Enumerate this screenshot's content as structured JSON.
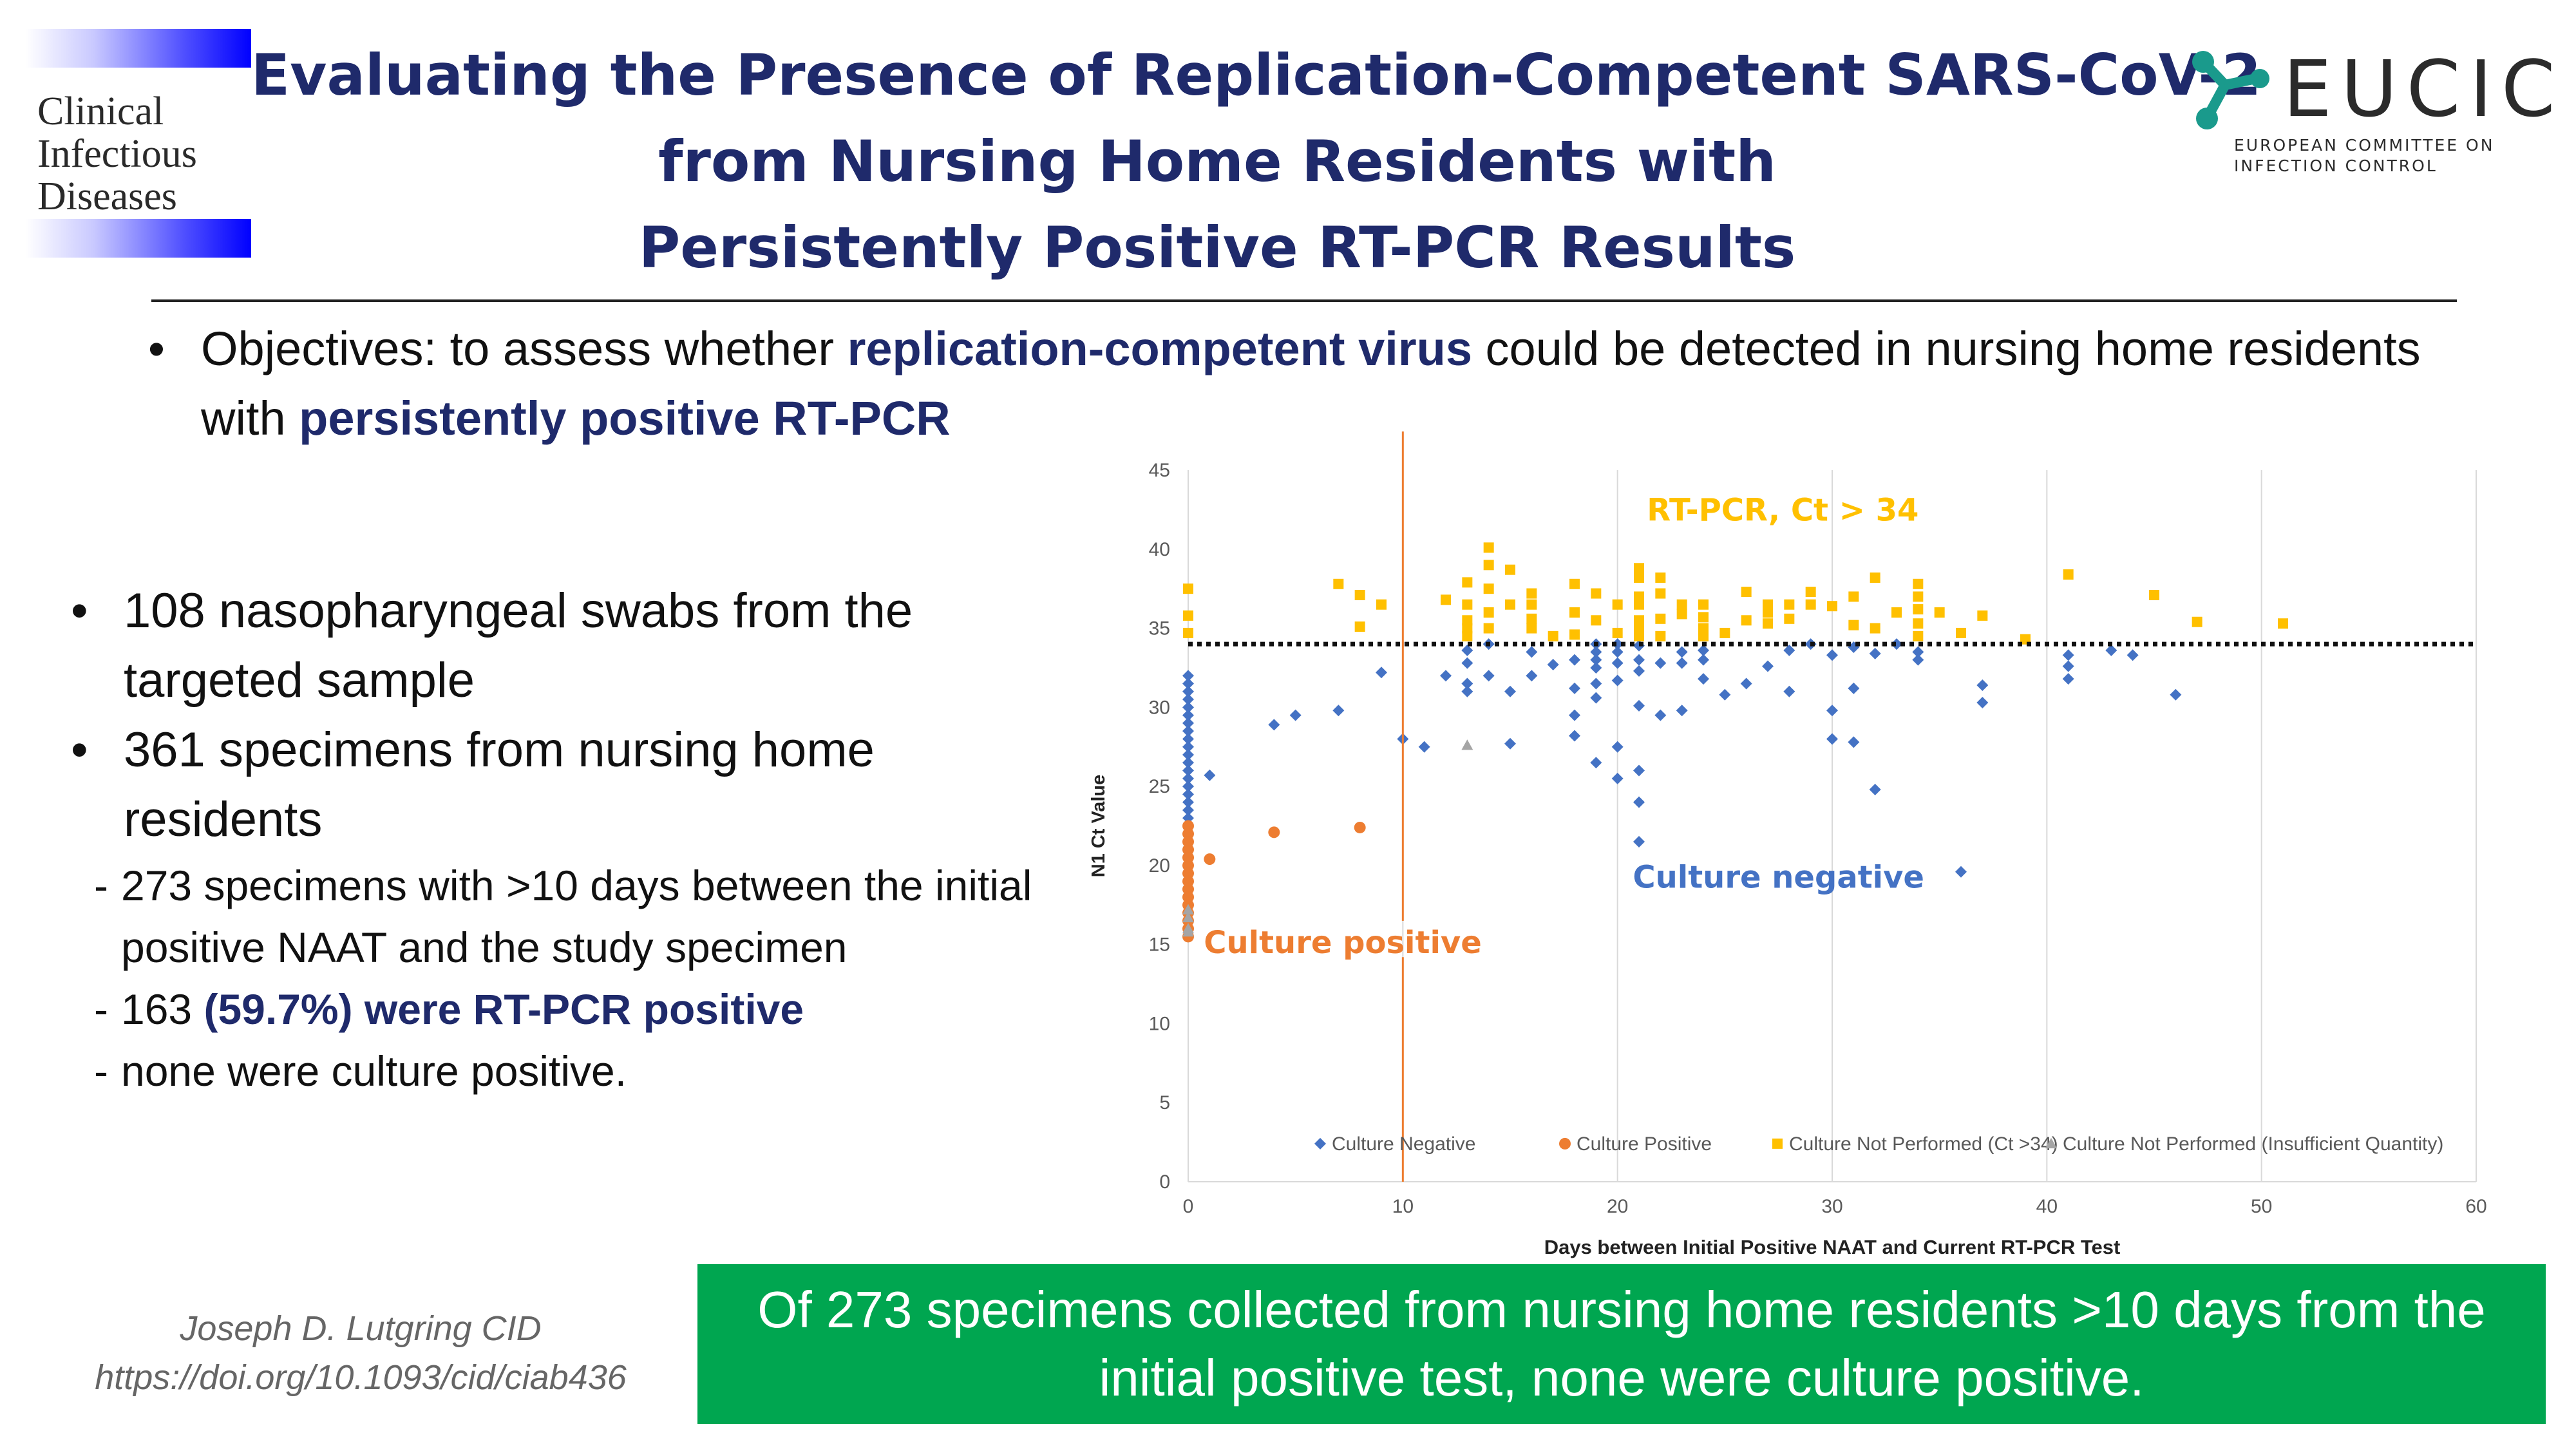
{
  "journal_logo": {
    "lines": [
      "Clinical",
      "Infectious",
      "Diseases"
    ]
  },
  "title": {
    "line1": "Evaluating the Presence of Replication-Competent SARS-CoV-2",
    "line2": "from Nursing Home Residents with",
    "line3": "Persistently Positive RT-PCR Results"
  },
  "eucic": {
    "name": "EUCIC",
    "sub1": "EUROPEAN COMMITTEE ON",
    "sub2": "INFECTION CONTROL",
    "color": "#1a9a8c"
  },
  "objectives": {
    "bullet": "•",
    "p1": "Objectives: to assess whether ",
    "h1": "replication-competent virus",
    "p2": " could be detected in nursing home residents with ",
    "h2": "persistently positive RT-PCR"
  },
  "left_list": {
    "bullet": "•",
    "dash": "-",
    "item1": "108 nasopharyngeal swabs from the targeted sample",
    "item2": "361 specimens from nursing home residents",
    "sub1": "273 specimens with >10 days between the initial positive NAAT and the study specimen",
    "sub2_num": "163 ",
    "sub2_hl": "(59.7%) were RT-PCR positive",
    "sub3": "none were culture positive."
  },
  "author": {
    "line1": "Joseph D. Lutgring CID",
    "line2": "https://doi.org/10.1093/cid/ciab436"
  },
  "takeaway": {
    "line1": "Of 273 specimens collected from nursing home residents >10 days from the",
    "line2": "initial positive test, none were culture positive."
  },
  "chart_data": {
    "type": "scatter",
    "xlabel": "Days between Initial Positive NAAT and Current RT-PCR Test",
    "ylabel": "N1 Ct Value",
    "xlim": [
      0,
      60
    ],
    "ylim": [
      0,
      45
    ],
    "xticks": [
      0,
      10,
      20,
      30,
      40,
      50,
      60
    ],
    "yticks": [
      0,
      5,
      10,
      15,
      20,
      25,
      30,
      35,
      40,
      45
    ],
    "grid": "vertical",
    "threshold": 34,
    "vline": 10,
    "annotations": {
      "ct_label": "RT-PCR, Ct > 34",
      "culture_positive": "Culture positive",
      "culture_negative": "Culture negative"
    },
    "colors": {
      "negative": "#4472c4",
      "positive": "#ed7d31",
      "not_performed_ct": "#ffc000",
      "insufficient": "#a5a5a5",
      "vline": "#ed7d31"
    },
    "legend_position": "bottom-inside",
    "series": [
      {
        "name": "Culture Negative",
        "marker": "diamond",
        "points": [
          [
            0,
            32
          ],
          [
            0,
            31.5
          ],
          [
            0,
            31
          ],
          [
            0,
            30.5
          ],
          [
            0,
            30
          ],
          [
            0,
            29.5
          ],
          [
            0,
            29
          ],
          [
            0,
            28.5
          ],
          [
            0,
            28
          ],
          [
            0,
            27.5
          ],
          [
            0,
            27
          ],
          [
            0,
            26.5
          ],
          [
            0,
            26
          ],
          [
            0,
            25.5
          ],
          [
            0,
            25
          ],
          [
            0,
            24.5
          ],
          [
            0,
            24
          ],
          [
            0,
            23.5
          ],
          [
            0,
            23
          ],
          [
            1,
            25.7
          ],
          [
            4,
            28.9
          ],
          [
            5,
            29.5
          ],
          [
            7,
            29.8
          ],
          [
            9,
            32.2
          ],
          [
            10,
            28
          ],
          [
            11,
            27.5
          ],
          [
            12,
            32
          ],
          [
            13,
            31.5
          ],
          [
            13,
            31
          ],
          [
            13,
            32.8
          ],
          [
            13,
            33.6
          ],
          [
            14,
            32
          ],
          [
            14,
            34
          ],
          [
            15,
            31
          ],
          [
            15,
            27.7
          ],
          [
            16,
            33.5
          ],
          [
            16,
            32
          ],
          [
            17,
            32.7
          ],
          [
            18,
            33
          ],
          [
            18,
            31.2
          ],
          [
            18,
            29.5
          ],
          [
            18,
            28.2
          ],
          [
            19,
            34
          ],
          [
            19,
            33.5
          ],
          [
            19,
            33
          ],
          [
            19,
            32.5
          ],
          [
            19,
            31.5
          ],
          [
            19,
            30.6
          ],
          [
            19,
            26.5
          ],
          [
            20,
            34
          ],
          [
            20,
            33.5
          ],
          [
            20,
            32.8
          ],
          [
            20,
            31.7
          ],
          [
            20,
            27.5
          ],
          [
            20,
            25.5
          ],
          [
            21,
            33.9
          ],
          [
            21,
            33
          ],
          [
            21,
            32.3
          ],
          [
            21,
            30.1
          ],
          [
            21,
            26
          ],
          [
            21,
            24
          ],
          [
            21,
            21.5
          ],
          [
            22,
            32.8
          ],
          [
            22,
            29.5
          ],
          [
            23,
            29.8
          ],
          [
            23,
            33.5
          ],
          [
            23,
            32.8
          ],
          [
            24,
            33.6
          ],
          [
            24,
            33
          ],
          [
            24,
            31.8
          ],
          [
            25,
            30.8
          ],
          [
            26,
            31.5
          ],
          [
            27,
            32.6
          ],
          [
            28,
            33.6
          ],
          [
            28,
            31
          ],
          [
            29,
            34
          ],
          [
            30,
            33.3
          ],
          [
            30,
            29.8
          ],
          [
            30,
            28
          ],
          [
            31,
            33.8
          ],
          [
            31,
            31.2
          ],
          [
            31,
            27.8
          ],
          [
            32,
            33.4
          ],
          [
            32,
            24.8
          ],
          [
            33,
            34
          ],
          [
            34,
            33.5
          ],
          [
            34,
            33
          ],
          [
            36,
            19.6
          ],
          [
            37,
            31.4
          ],
          [
            37,
            30.3
          ],
          [
            41,
            33.3
          ],
          [
            41,
            32.6
          ],
          [
            41,
            31.8
          ],
          [
            43,
            33.6
          ],
          [
            44,
            33.3
          ],
          [
            46,
            30.8
          ]
        ]
      },
      {
        "name": "Culture Positive",
        "marker": "circle",
        "points": [
          [
            0,
            22.5
          ],
          [
            0,
            22
          ],
          [
            0,
            21.5
          ],
          [
            0,
            21
          ],
          [
            0,
            20.5
          ],
          [
            0,
            20
          ],
          [
            0,
            19.5
          ],
          [
            0,
            19
          ],
          [
            0,
            18.5
          ],
          [
            0,
            18
          ],
          [
            0,
            17.5
          ],
          [
            0,
            17
          ],
          [
            0,
            16.5
          ],
          [
            0,
            16
          ],
          [
            0,
            15.5
          ],
          [
            1,
            20.4
          ],
          [
            4,
            22.1
          ],
          [
            8,
            22.4
          ]
        ]
      },
      {
        "name": "Culture Not Performed (Ct >34)",
        "marker": "square",
        "points": [
          [
            0,
            37.5
          ],
          [
            0,
            35.8
          ],
          [
            0,
            34.7
          ],
          [
            7,
            37.8
          ],
          [
            8,
            37.1
          ],
          [
            8,
            35.1
          ],
          [
            9,
            36.5
          ],
          [
            12,
            36.8
          ],
          [
            13,
            37.9
          ],
          [
            13,
            36.5
          ],
          [
            13,
            35.5
          ],
          [
            13,
            35
          ],
          [
            13,
            34.5
          ],
          [
            14,
            40.1
          ],
          [
            14,
            39
          ],
          [
            14,
            37.5
          ],
          [
            14,
            36
          ],
          [
            14,
            35
          ],
          [
            15,
            38.7
          ],
          [
            15,
            36.5
          ],
          [
            16,
            37.2
          ],
          [
            16,
            36.5
          ],
          [
            16,
            35.6
          ],
          [
            16,
            35
          ],
          [
            17,
            34.5
          ],
          [
            18,
            37.8
          ],
          [
            18,
            36
          ],
          [
            18,
            34.6
          ],
          [
            19,
            37.2
          ],
          [
            19,
            35.5
          ],
          [
            20,
            36.5
          ],
          [
            20,
            34.7
          ],
          [
            21,
            38.8
          ],
          [
            21,
            38.2
          ],
          [
            21,
            37
          ],
          [
            21,
            36.5
          ],
          [
            21,
            35.5
          ],
          [
            21,
            35
          ],
          [
            21,
            34.5
          ],
          [
            22,
            38.2
          ],
          [
            22,
            37.2
          ],
          [
            22,
            35.6
          ],
          [
            22,
            34.5
          ],
          [
            23,
            36.5
          ],
          [
            23,
            35.9
          ],
          [
            24,
            36.5
          ],
          [
            24,
            35.7
          ],
          [
            24,
            35
          ],
          [
            24,
            34.5
          ],
          [
            25,
            34.7
          ],
          [
            26,
            37.3
          ],
          [
            26,
            35.5
          ],
          [
            27,
            36.5
          ],
          [
            27,
            36
          ],
          [
            27,
            35.3
          ],
          [
            28,
            36.5
          ],
          [
            28,
            35.6
          ],
          [
            29,
            37.3
          ],
          [
            29,
            36.5
          ],
          [
            30,
            36.4
          ],
          [
            31,
            37
          ],
          [
            31,
            35.2
          ],
          [
            32,
            38.2
          ],
          [
            32,
            35
          ],
          [
            33,
            36
          ],
          [
            34,
            37.8
          ],
          [
            34,
            37
          ],
          [
            34,
            36.2
          ],
          [
            34,
            35.3
          ],
          [
            34,
            34.5
          ],
          [
            35,
            36
          ],
          [
            36,
            34.7
          ],
          [
            37,
            35.8
          ],
          [
            39,
            34.3
          ],
          [
            41,
            38.4
          ],
          [
            45,
            37.1
          ],
          [
            47,
            35.4
          ],
          [
            51,
            35.3
          ]
        ]
      },
      {
        "name": "Culture Not Performed (Insufficient Quantity)",
        "marker": "triangle",
        "points": [
          [
            0,
            16
          ],
          [
            0,
            15.8
          ],
          [
            0,
            16.7
          ],
          [
            0,
            17.2
          ],
          [
            13,
            27.6
          ]
        ]
      }
    ]
  }
}
